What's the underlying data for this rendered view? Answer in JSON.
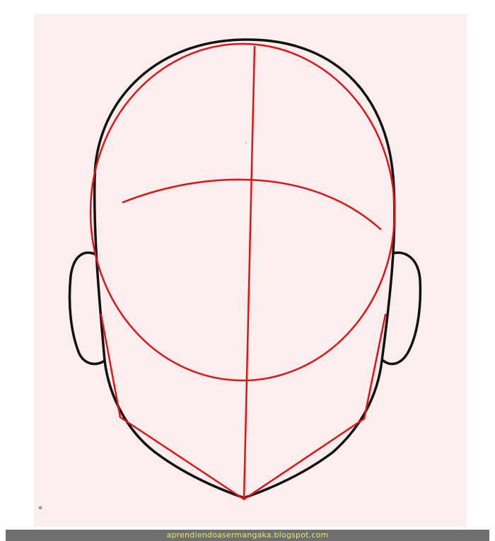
{
  "footer": {
    "watermark": "aprendiendoasermangaka.blogspot.com"
  },
  "colors": {
    "paper": "#fbeeee",
    "ink": "#111111",
    "guide": "#e01414",
    "footer_bar": "#6f6f6f",
    "footer_text": "#e8e85a"
  },
  "illustration": {
    "subject": "head-construction-drawing"
  }
}
